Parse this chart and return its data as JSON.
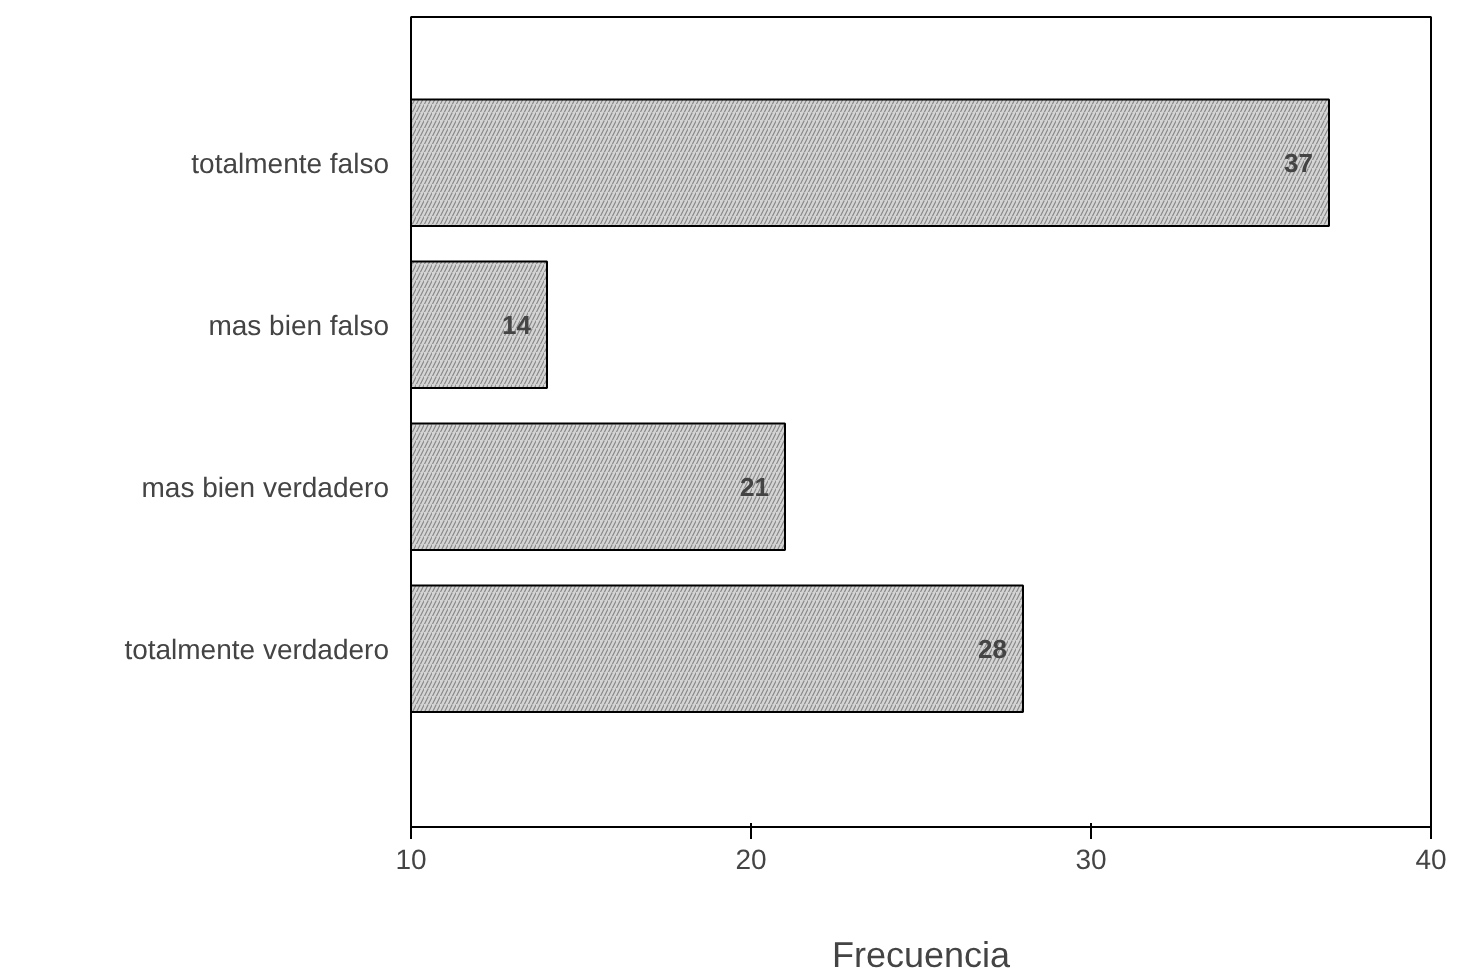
{
  "chart_data": {
    "type": "bar",
    "orientation": "horizontal",
    "xlabel": "Frecuencia",
    "categories": [
      "totalmente falso",
      "mas bien falso",
      "mas bien verdadero",
      "totalmente verdadero"
    ],
    "values": [
      37,
      14,
      21,
      28
    ],
    "color": "#d4d4d4",
    "xlim": [
      10,
      40
    ],
    "xticks": [
      10,
      20,
      30,
      40
    ],
    "data_labels": true,
    "grid": false
  }
}
